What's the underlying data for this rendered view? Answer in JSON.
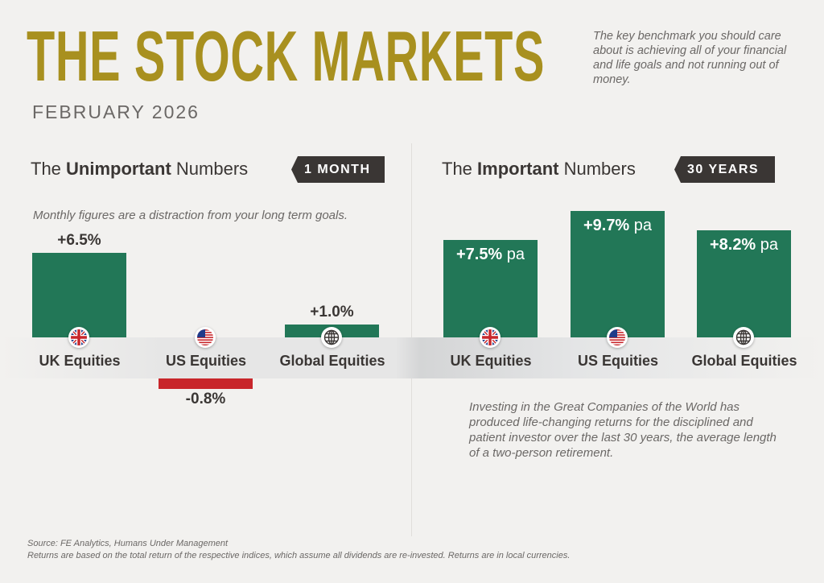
{
  "header": {
    "title": "THE STOCK MARKETS",
    "date": "FEBRUARY 2026",
    "intro": "The key benchmark you should care about is achieving all of your financial and life goals and not running out of money."
  },
  "left": {
    "pre": "The ",
    "bold": "Unimportant",
    "post": " Numbers",
    "badge": "1 MONTH",
    "note": "Monthly figures are a distraction from your long term goals."
  },
  "right": {
    "pre": "The ",
    "bold": "Important",
    "post": " Numbers",
    "badge": "30 YEARS",
    "note": "Investing in the Great Companies of the World has produced life-changing returns for the disciplined and patient investor over the last 30 years, the average length of a two-person retirement."
  },
  "footer": {
    "source": "Source: FE Analytics, Humans Under Management",
    "disclaimer": "Returns are based on the total return of the respective indices, which assume all dividends are re-invested. Returns are in local currencies."
  },
  "colors": {
    "positive": "#227757",
    "negative": "#c8262b",
    "title": "#a8901f",
    "badge": "#3a3634"
  },
  "chart_data": [
    {
      "type": "bar",
      "title": "The Unimportant Numbers",
      "period": "1 MONTH",
      "unit": "%",
      "categories": [
        "UK Equities",
        "US Equities",
        "Global Equities"
      ],
      "icons": [
        "uk-flag",
        "us-flag",
        "globe"
      ],
      "values": [
        6.5,
        -0.8,
        1.0
      ],
      "labels": [
        "+6.5%",
        "-0.8%",
        "+1.0%"
      ],
      "suffix": ""
    },
    {
      "type": "bar",
      "title": "The Important Numbers",
      "period": "30 YEARS",
      "unit": "% pa",
      "categories": [
        "UK Equities",
        "US Equities",
        "Global Equities"
      ],
      "icons": [
        "uk-flag",
        "us-flag",
        "globe"
      ],
      "values": [
        7.5,
        9.7,
        8.2
      ],
      "labels": [
        "+7.5%",
        "+9.7%",
        "+8.2%"
      ],
      "suffix": " pa"
    }
  ]
}
